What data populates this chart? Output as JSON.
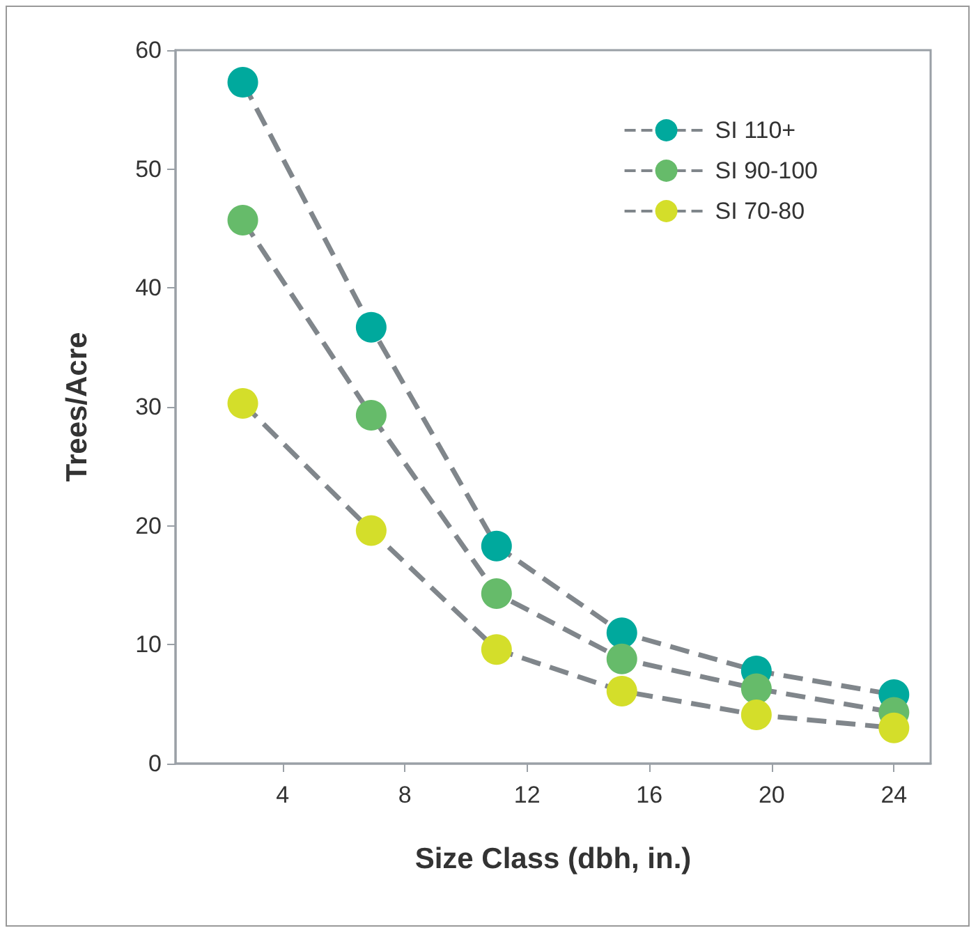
{
  "chart_data": {
    "type": "line",
    "xlabel": "Size Class (dbh, in.)",
    "ylabel": "Trees/Acre",
    "xlim": [
      0.5,
      25.2
    ],
    "xticks": [
      4,
      8,
      12,
      16,
      20,
      24
    ],
    "ylim": [
      0,
      60
    ],
    "yticks": [
      0,
      10,
      20,
      30,
      40,
      50,
      60
    ],
    "series": [
      {
        "name": "SI 110+",
        "color": "#00a99d",
        "x": [
          2.7,
          6.9,
          11,
          15.1,
          19.5,
          24
        ],
        "values": [
          57.3,
          36.7,
          18.3,
          11,
          7.8,
          5.8
        ]
      },
      {
        "name": "SI 90-100",
        "color": "#66bb6a",
        "x": [
          2.7,
          6.9,
          11,
          15.1,
          19.5,
          24
        ],
        "values": [
          45.7,
          29.3,
          14.3,
          8.8,
          6.3,
          4.3
        ]
      },
      {
        "name": "SI 70-80",
        "color": "#d4de2a",
        "x": [
          2.7,
          6.9,
          11,
          15.1,
          19.5,
          24
        ],
        "values": [
          30.3,
          19.6,
          9.6,
          6.1,
          4.1,
          3.0
        ]
      }
    ],
    "grid": false,
    "legend": "top right",
    "marker": "circle",
    "line_style": "dashed"
  }
}
